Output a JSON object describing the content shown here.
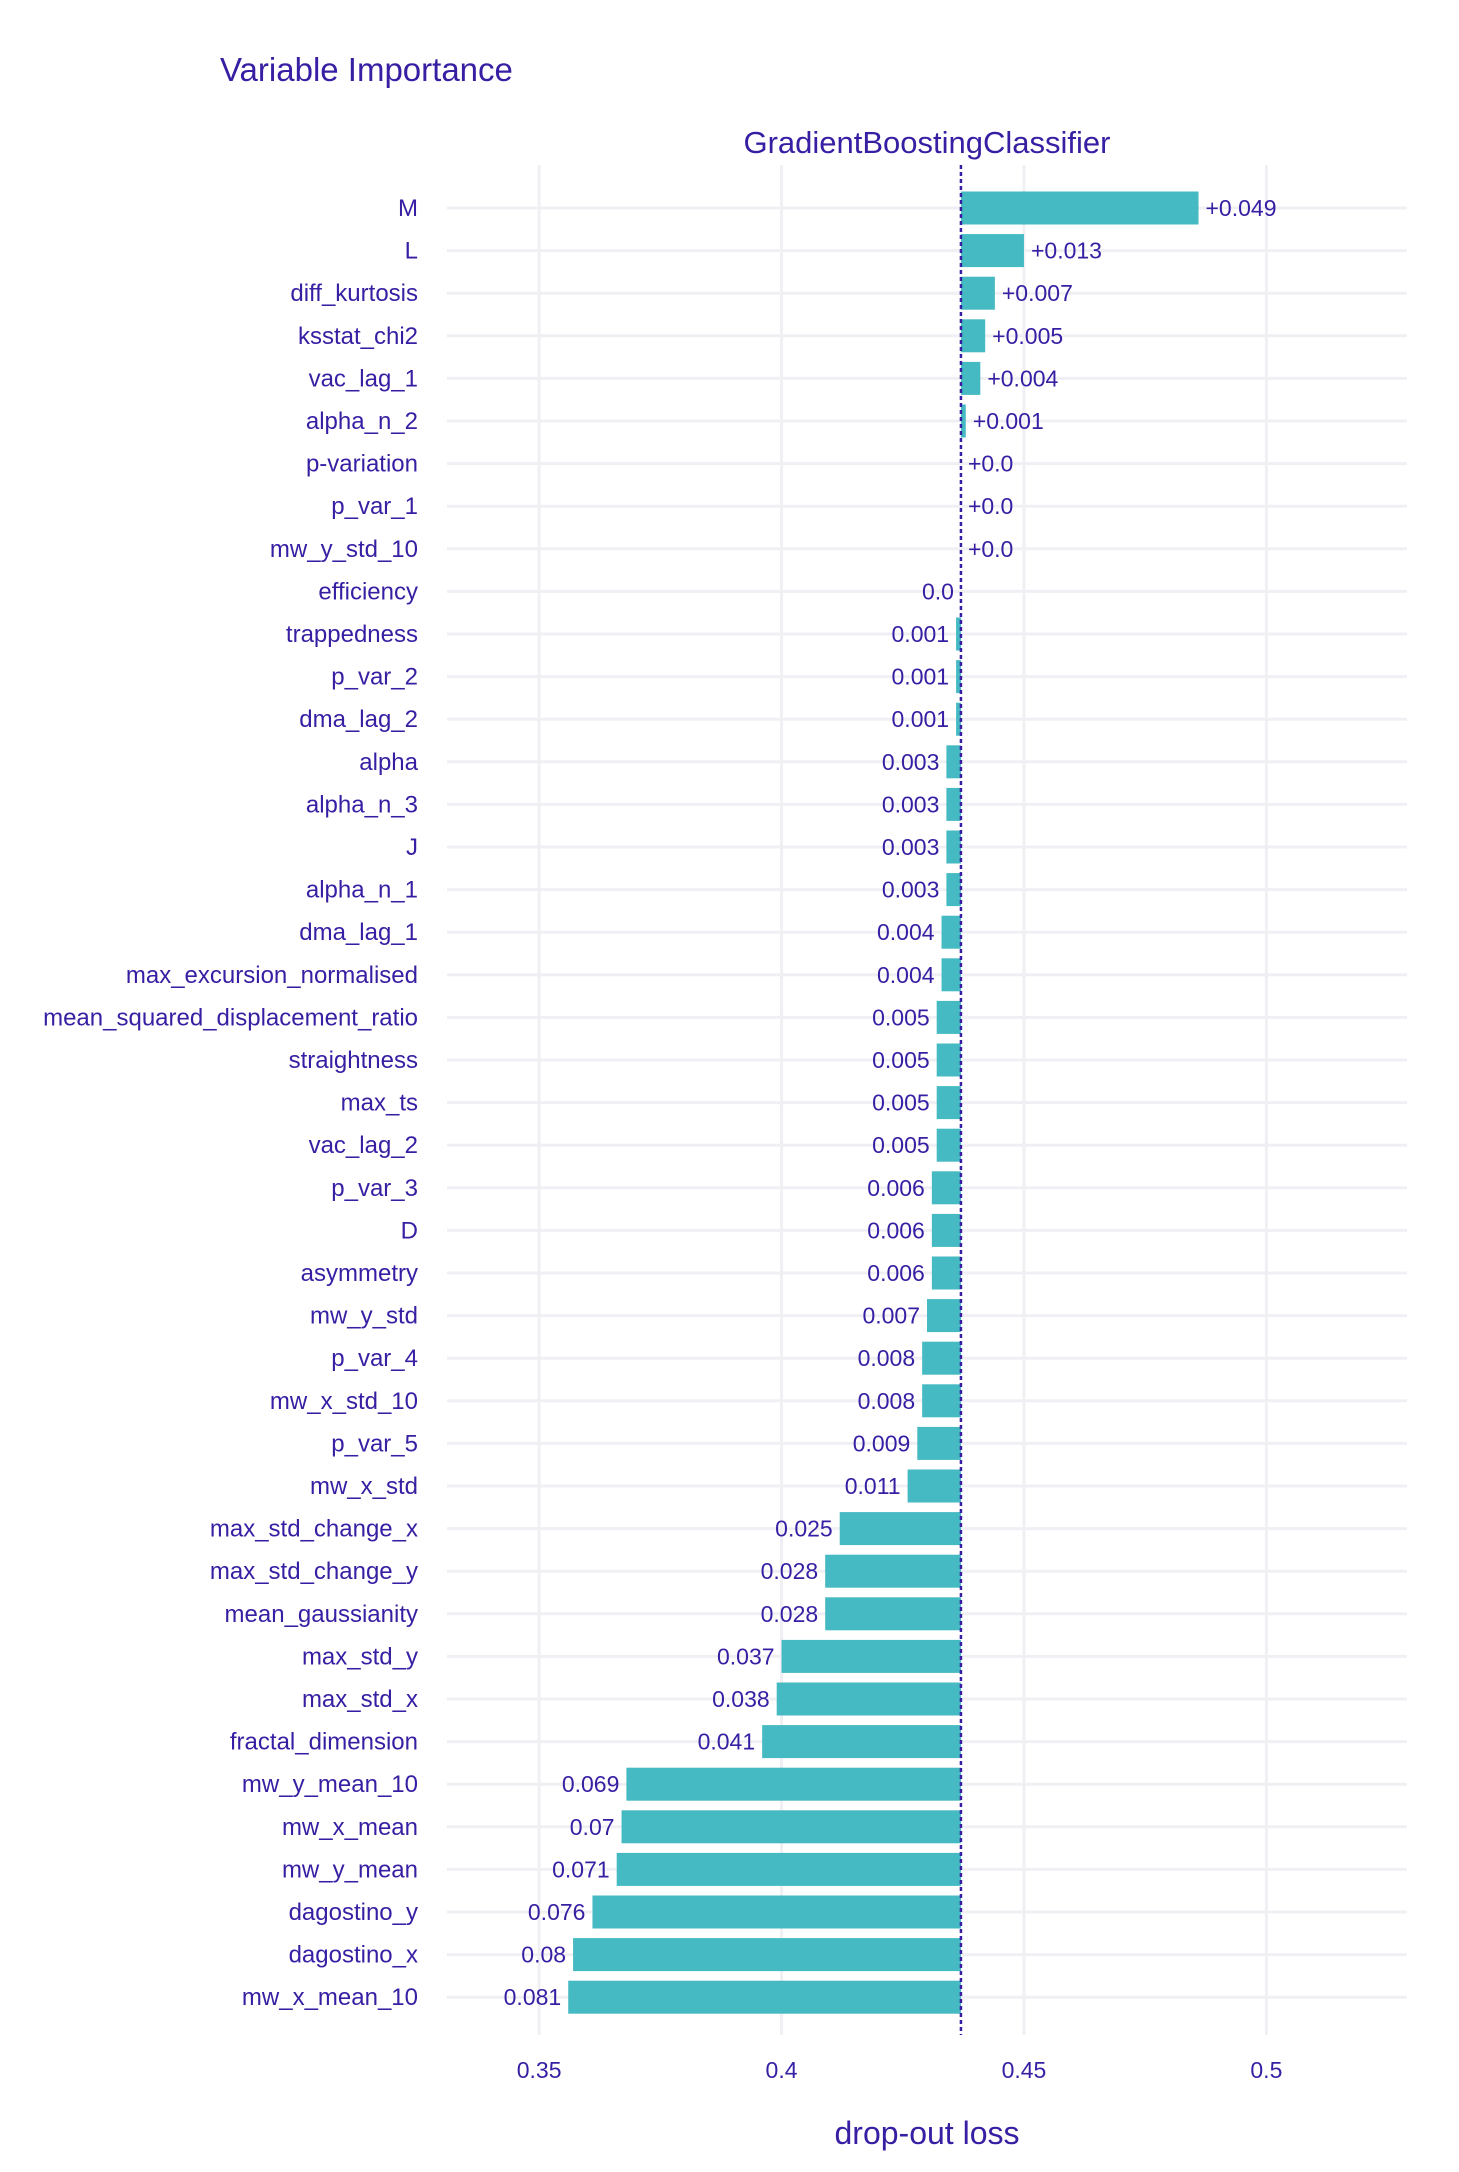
{
  "chart_data": {
    "type": "bar",
    "orientation": "horizontal",
    "title": "Variable Importance",
    "subtitle": "GradientBoostingClassifier",
    "xlabel": "drop-out loss",
    "ylabel": "",
    "baseline": 0.437,
    "xlim": [
      0.331,
      0.529
    ],
    "xticks": [
      0.35,
      0.4,
      0.45,
      0.5
    ],
    "xtick_labels": [
      "0.35",
      "0.4",
      "0.45",
      "0.5"
    ],
    "grid": true,
    "legend": "none",
    "bar_color": "#46bac2",
    "baseline_color": "#371ea3",
    "text_color": "#371ea3",
    "grid_color": "#f0f0f4",
    "categories": [
      "M",
      "L",
      "diff_kurtosis",
      "ksstat_chi2",
      "vac_lag_1",
      "alpha_n_2",
      "p-variation",
      "p_var_1",
      "mw_y_std_10",
      "efficiency",
      "trappedness",
      "p_var_2",
      "dma_lag_2",
      "alpha",
      "alpha_n_3",
      "J",
      "alpha_n_1",
      "dma_lag_1",
      "max_excursion_normalised",
      "mean_squared_displacement_ratio",
      "straightness",
      "max_ts",
      "vac_lag_2",
      "p_var_3",
      "D",
      "asymmetry",
      "mw_y_std",
      "p_var_4",
      "mw_x_std_10",
      "p_var_5",
      "mw_x_std",
      "max_std_change_x",
      "max_std_change_y",
      "mean_gaussianity",
      "max_std_y",
      "max_std_x",
      "fractal_dimension",
      "mw_y_mean_10",
      "mw_x_mean",
      "mw_y_mean",
      "dagostino_y",
      "dagostino_x",
      "mw_x_mean_10"
    ],
    "values": [
      0.049,
      0.013,
      0.007,
      0.005,
      0.004,
      0.001,
      0.0,
      0.0,
      0.0,
      0.0,
      -0.001,
      -0.001,
      -0.001,
      -0.003,
      -0.003,
      -0.003,
      -0.003,
      -0.004,
      -0.004,
      -0.005,
      -0.005,
      -0.005,
      -0.005,
      -0.006,
      -0.006,
      -0.006,
      -0.007,
      -0.008,
      -0.008,
      -0.009,
      -0.011,
      -0.025,
      -0.028,
      -0.028,
      -0.037,
      -0.038,
      -0.041,
      -0.069,
      -0.07,
      -0.071,
      -0.076,
      -0.08,
      -0.081
    ],
    "labels": [
      "+0.049",
      "+0.013",
      "+0.007",
      "+0.005",
      "+0.004",
      "+0.001",
      "+0.0",
      "+0.0",
      "+0.0",
      "0.0",
      "0.001",
      "0.001",
      "0.001",
      "0.003",
      "0.003",
      "0.003",
      "0.003",
      "0.004",
      "0.004",
      "0.005",
      "0.005",
      "0.005",
      "0.005",
      "0.006",
      "0.006",
      "0.006",
      "0.007",
      "0.008",
      "0.008",
      "0.009",
      "0.011",
      "0.025",
      "0.028",
      "0.028",
      "0.037",
      "0.038",
      "0.041",
      "0.069",
      "0.07",
      "0.071",
      "0.076",
      "0.08",
      "0.081"
    ]
  }
}
